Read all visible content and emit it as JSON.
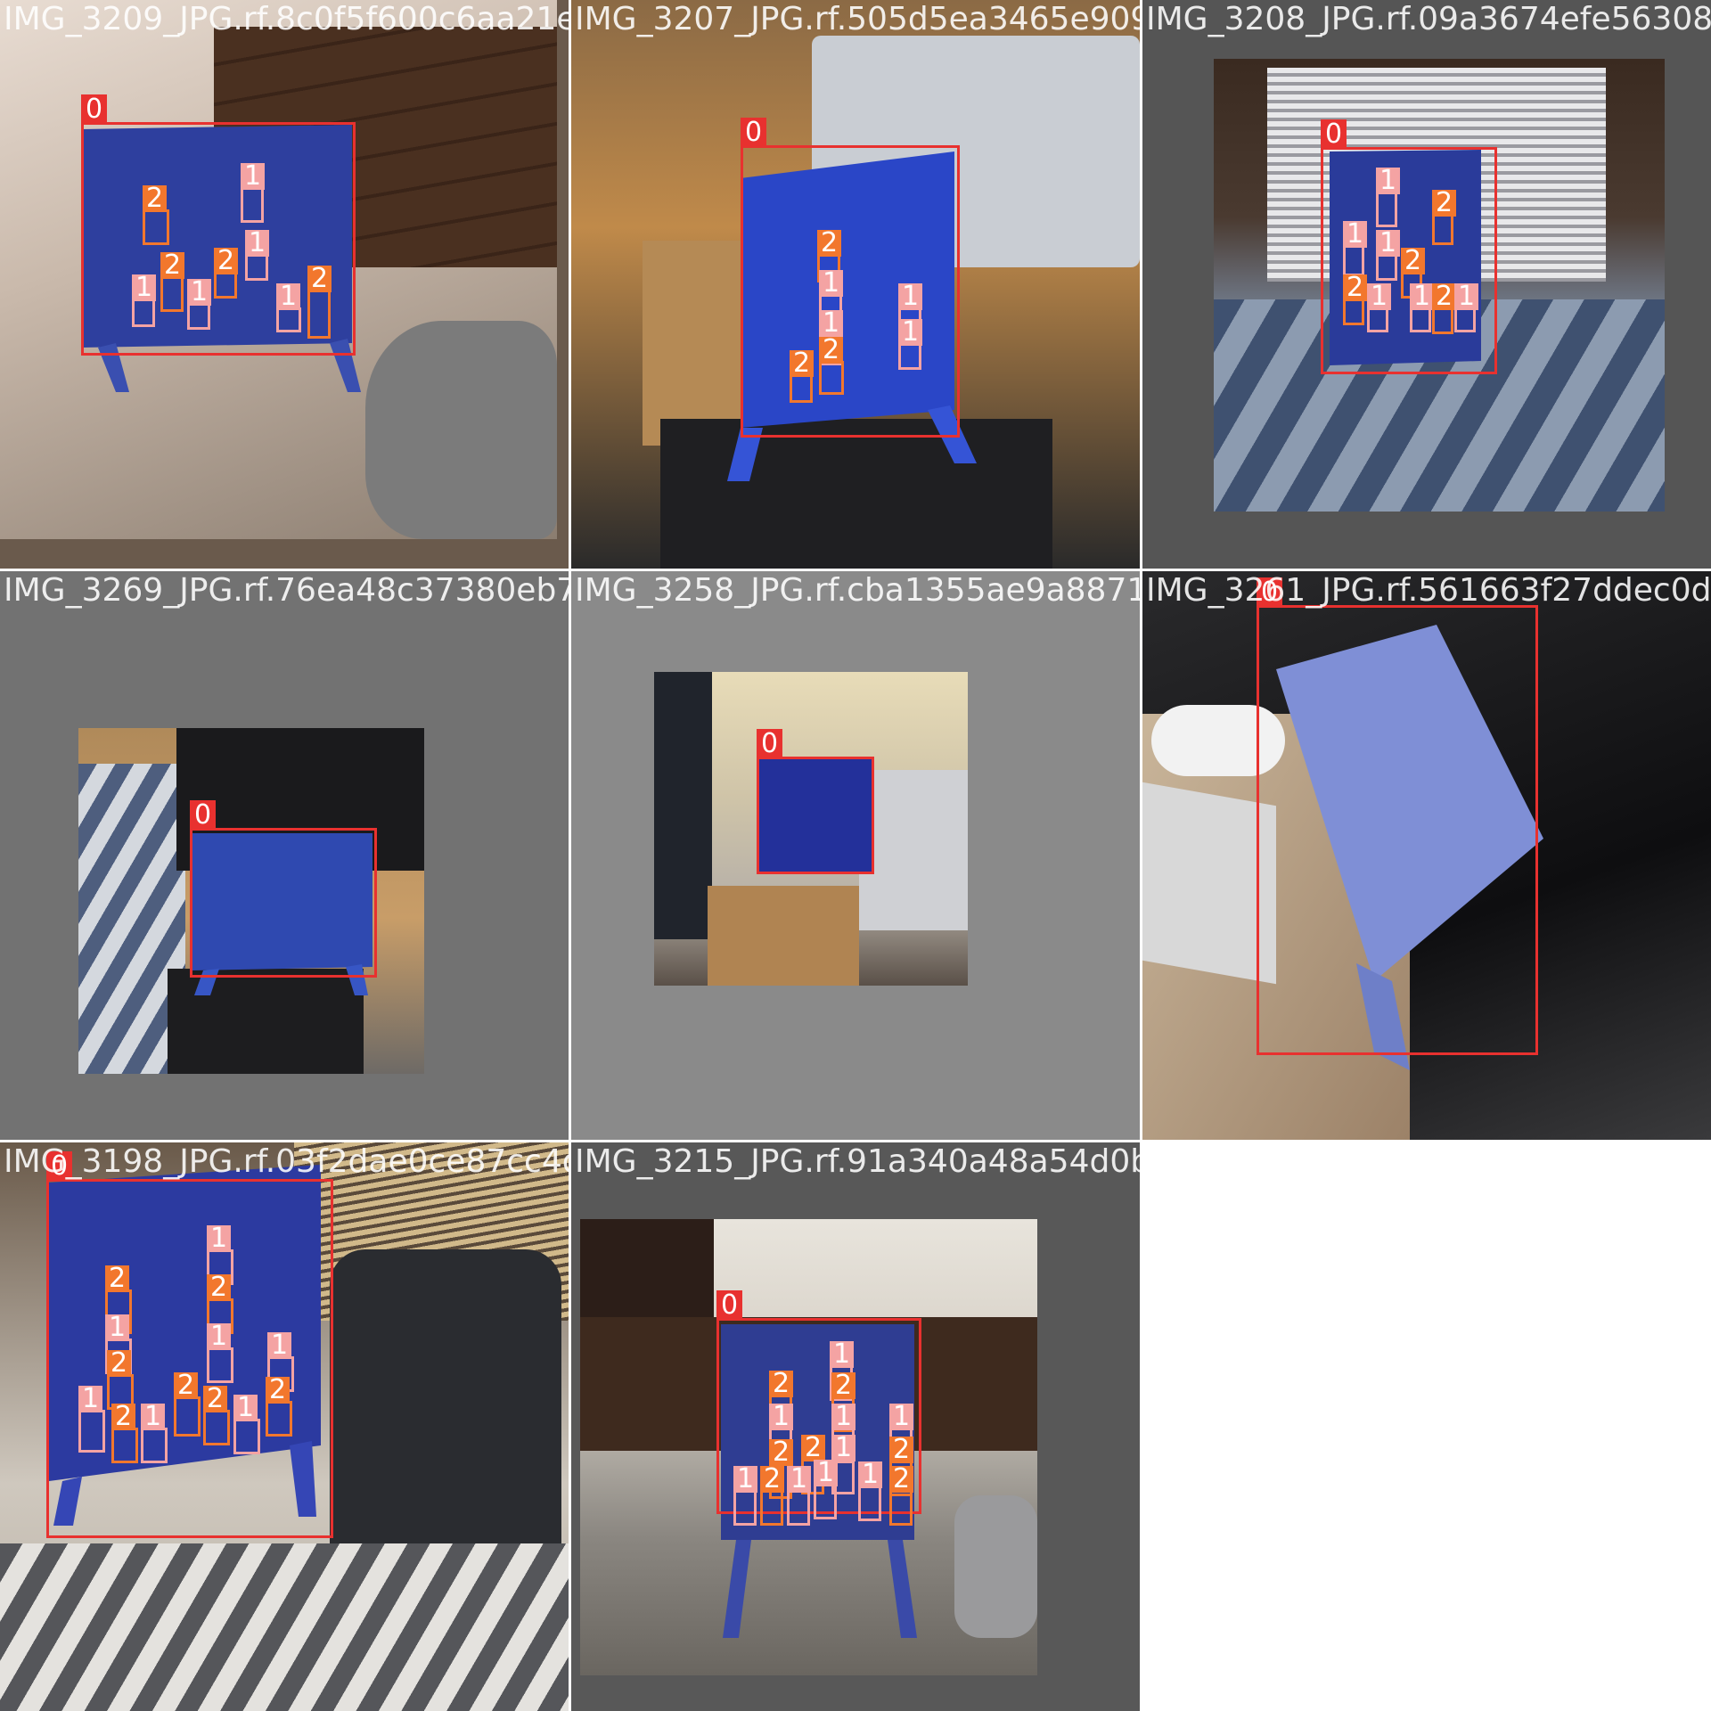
{
  "mosaic": {
    "tiles": [
      {
        "filename": "IMG_3209_JPG.rf.8c0f5f600c6aa21e2b9d0370",
        "class_board_label": "0"
      },
      {
        "filename": "IMG_3207_JPG.rf.505d5ea3465e9090bd13208",
        "class_board_label": "0"
      },
      {
        "filename": "IMG_3208_JPG.rf.09a3674efe563083",
        "class_board_label": "0"
      },
      {
        "filename": "IMG_3269_JPG.rf.76ea48c37380eb744",
        "class_board_label": "0"
      },
      {
        "filename": "IMG_3258_JPG.rf.cba1355ae9a8871",
        "class_board_label": "0"
      },
      {
        "filename": "IMG_3261_JPG.rf.561663f27ddec0d8",
        "class_board_label": "0"
      },
      {
        "filename": "IMG_3198_JPG.rf.03f2dae0ce87cc4d1f1a2",
        "class_board_label": "0"
      },
      {
        "filename": "IMG_3215_JPG.rf.91a340a48a54d0b1d1823c10",
        "class_board_label": "0"
      }
    ],
    "piece_labels": {
      "player1": "1",
      "player2": "2"
    },
    "colors": {
      "board_box": "#e8312f",
      "player1_box": "#f4a3a3",
      "player2_box": "#f2772d",
      "board": "#2e3f9e",
      "letterbox": "#727272"
    }
  }
}
